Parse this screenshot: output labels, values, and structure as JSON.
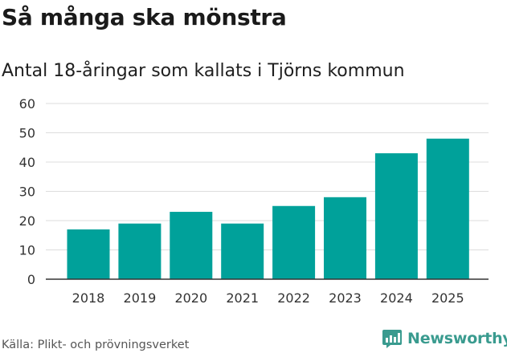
{
  "title": "Så många ska mönstra",
  "subtitle": "Antal 18-åringar som kallats i Tjörns kommun",
  "source": "Källa: Plikt- och prövningsverket",
  "brand": {
    "name": "Newsworthy",
    "icon": "bar-chart-speech-bubble-icon",
    "color": "#3a9b8f"
  },
  "colors": {
    "bar": "#00a19a",
    "grid": "#dddddd",
    "axis": "#333333"
  },
  "chart_data": {
    "type": "bar",
    "title": "Så många ska mönstra",
    "subtitle": "Antal 18-åringar som kallats i Tjörns kommun",
    "categories": [
      "2018",
      "2019",
      "2020",
      "2021",
      "2022",
      "2023",
      "2024",
      "2025"
    ],
    "values": [
      17,
      19,
      23,
      19,
      25,
      28,
      43,
      48
    ],
    "xlabel": "",
    "ylabel": "",
    "ylim": [
      0,
      60
    ],
    "yticks": [
      0,
      10,
      20,
      30,
      40,
      50,
      60
    ],
    "grid": true,
    "legend": "none"
  }
}
